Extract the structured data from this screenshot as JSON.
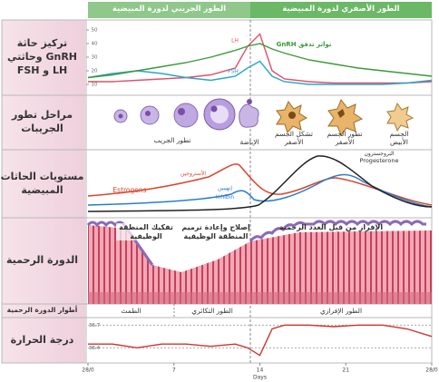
{
  "header": {
    "follicular_phase": "الطور الجريبي لدورة المبيضية",
    "luteal_phase": "الطور الأصفري لدورة المبيضية"
  },
  "row_labels": [
    "تركيز حاثة GnRH وحاثتي LH و FSH",
    "مراحل تطور الجريبات",
    "مستويات الحاثات المبيضية",
    "الدورة الرحمية",
    "أطوار الدورة الرحمية",
    "درجة الحرارة"
  ],
  "pituitary": {
    "x": [
      0,
      2,
      4,
      6,
      8,
      10,
      12,
      13,
      14,
      15,
      16,
      18,
      20,
      22,
      24,
      26,
      28
    ],
    "ylim": [
      2,
      52
    ],
    "yticks": [
      10,
      20,
      30,
      40,
      50
    ],
    "series": [
      {
        "name": "LH",
        "color": "#e0506a",
        "values": [
          12,
          12,
          13,
          14,
          15,
          17,
          22,
          38,
          47,
          20,
          14,
          12,
          11,
          11,
          11,
          11,
          12
        ]
      },
      {
        "name": "FSH",
        "color": "#2aa6c8",
        "values": [
          15,
          18,
          20,
          18,
          15,
          13,
          16,
          22,
          27,
          16,
          12,
          10,
          10,
          10,
          10,
          11,
          13
        ]
      },
      {
        "name": "تواتر تدفق GnRH",
        "color": "#3a9a3a",
        "values": [
          15,
          17,
          20,
          23,
          26,
          30,
          35,
          38,
          40,
          36,
          33,
          28,
          25,
          22,
          20,
          18,
          16
        ]
      }
    ]
  },
  "follicle_stages": [
    "تطور الجريب",
    "الإباضة",
    "تشكل الجسم الأصفر",
    "تطور الجسم الأصفر",
    "الجسم الأبيض"
  ],
  "ovarian_hormones": [
    "Estrogens",
    "الأستروجين",
    "Inhibin",
    "إنهيبين",
    "البروجسترون",
    "Progesterone"
  ],
  "uterine_cycle": [
    "تفكيك المنطقة الوظيفية",
    "إصلاح وإعادة ترميم المنطقة الوظيفية",
    "الإفراز من قبل الغدد الرحمية"
  ],
  "uterine_phases": [
    "الطمث",
    "الطور التكاثري",
    "الطور الإفرازي"
  ],
  "temperature": {
    "x": [
      0,
      2,
      4,
      6,
      8,
      10,
      12,
      13,
      14,
      15,
      16,
      18,
      20,
      22,
      24,
      26,
      28
    ],
    "values": [
      36.45,
      36.45,
      36.4,
      36.45,
      36.45,
      36.42,
      36.45,
      36.4,
      36.3,
      36.65,
      36.7,
      36.7,
      36.68,
      36.7,
      36.7,
      36.65,
      36.55
    ],
    "color": "#d0342c",
    "ylim": [
      36.2,
      36.8
    ],
    "yticks": [
      36.4,
      36.7
    ]
  },
  "days_axis": {
    "xlim": [
      0,
      28
    ],
    "xticks": [
      {
        "value": 0,
        "label": "28/0"
      },
      7,
      14,
      21,
      {
        "value": 28,
        "label": "28/0"
      }
    ],
    "xlabel": "Days"
  }
}
